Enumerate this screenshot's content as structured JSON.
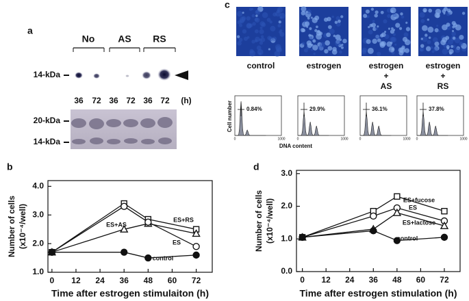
{
  "panels": {
    "a": {
      "label": "a",
      "groups": [
        "No",
        "AS",
        "RS"
      ],
      "band_label": "14-kDa",
      "times": [
        "36",
        "72",
        "36",
        "72",
        "36",
        "72"
      ],
      "time_unit": "(h)",
      "markers": [
        "20-kDa",
        "14-kDa"
      ]
    },
    "c": {
      "label": "c",
      "conditions": [
        {
          "lines": [
            "control"
          ]
        },
        {
          "lines": [
            "estrogen"
          ]
        },
        {
          "lines": [
            "estrogen",
            "+",
            "AS"
          ]
        },
        {
          "lines": [
            "estrogen",
            "+",
            "RS"
          ]
        }
      ],
      "histogram": {
        "ylabel": "Cell number",
        "xlabel": "DNA content",
        "xticks": [
          "0",
          "1000"
        ],
        "percentages": [
          "0.84%",
          "29.9%",
          "36.1%",
          "37.8%"
        ]
      }
    }
  },
  "chart_data": [
    {
      "type": "line",
      "panel": "b",
      "ylabel": [
        "Number of cells",
        "(x10⁻⁴/well)"
      ],
      "xlabel": "Time after estrogen stimulaiton (h)",
      "x": [
        0,
        36,
        48,
        72
      ],
      "xlim": [
        -2,
        80
      ],
      "xticks": [
        0,
        12,
        24,
        36,
        48,
        60,
        72
      ],
      "ylim": [
        1.0,
        4.2
      ],
      "yticks": [
        {
          "value": 1,
          "label": "1.0"
        },
        {
          "value": 2,
          "label": "2.0"
        },
        {
          "value": 3,
          "label": "3.0"
        },
        {
          "value": 4,
          "label": "4.0"
        }
      ],
      "series": [
        {
          "name": "ES+RS",
          "marker": "square-open",
          "color": "#111",
          "values": [
            1.7,
            3.4,
            2.85,
            2.5
          ]
        },
        {
          "name": "ES+AS",
          "marker": "triangle-open",
          "color": "#111",
          "values": [
            1.7,
            2.5,
            2.7,
            2.35
          ]
        },
        {
          "name": "ES",
          "marker": "circle-open",
          "color": "#111",
          "values": [
            1.7,
            3.3,
            2.75,
            1.9
          ]
        },
        {
          "name": "control",
          "marker": "circle-filled",
          "color": "#111",
          "values": [
            1.7,
            1.7,
            1.5,
            1.6
          ]
        }
      ]
    },
    {
      "type": "line",
      "panel": "d",
      "ylabel": [
        "Number of cells",
        "(x10⁻⁴/well)"
      ],
      "xlabel": "Time after estrogen stimulation (h)",
      "x": [
        0,
        36,
        48,
        72
      ],
      "xlim": [
        -3,
        80
      ],
      "xticks": [
        0,
        12,
        24,
        36,
        48,
        60,
        72
      ],
      "ylim": [
        0,
        3.1
      ],
      "yticks": [
        {
          "value": 0,
          "label": "0.0"
        },
        {
          "value": 1,
          "label": "1.0"
        },
        {
          "value": 2,
          "label": "2.0"
        },
        {
          "value": 3,
          "label": "3.0"
        }
      ],
      "series": [
        {
          "name": "ES+fucose",
          "marker": "square-open",
          "color": "#111",
          "values": [
            1.05,
            1.85,
            2.3,
            1.85
          ]
        },
        {
          "name": "ES",
          "marker": "circle-open",
          "color": "#111",
          "values": [
            1.05,
            1.7,
            1.95,
            1.55
          ]
        },
        {
          "name": "ES+lactose",
          "marker": "triangle-open",
          "color": "#111",
          "values": [
            1.05,
            1.3,
            1.8,
            1.4
          ]
        },
        {
          "name": "control",
          "marker": "circle-filled",
          "color": "#111",
          "values": [
            1.05,
            1.25,
            0.95,
            1.05
          ]
        }
      ]
    }
  ]
}
